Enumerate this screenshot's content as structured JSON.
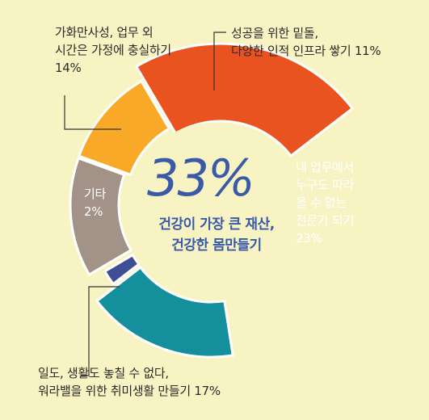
{
  "chart_data": {
    "type": "pie",
    "center": {
      "value": "33%",
      "line1": "건강이 가장 큰 재산,",
      "line2": "건강한 몸만들기"
    },
    "slices": [
      {
        "key": "foundation",
        "lines": [
          "성공을 위한 밑돌,",
          "다양한 인적 인프라 쌓기 11%"
        ],
        "value": 11,
        "color": "#f9a928"
      },
      {
        "key": "expert",
        "lines": [
          "내 업무에서",
          "누구도 따라",
          "올 수 없는",
          "전문가 되기",
          "23%"
        ],
        "value": 23,
        "color": "#e8531f"
      },
      {
        "key": "health",
        "lines": [],
        "value": 33,
        "color": "#f7f3c2"
      },
      {
        "key": "hobby",
        "lines": [
          "일도, 생활도 놓칠 수 없다,",
          "워라밸을 위한 취미생활 만들기 17%"
        ],
        "value": 17,
        "color": "#13909b"
      },
      {
        "key": "other",
        "lines": [
          "기타",
          "2%"
        ],
        "value": 2,
        "color": "#3f4f93"
      },
      {
        "key": "family",
        "lines": [
          "가화만사성, 업무 외",
          "시간은 가정에 충실하기",
          "14%"
        ],
        "value": 14,
        "color": "#a29288"
      }
    ]
  }
}
